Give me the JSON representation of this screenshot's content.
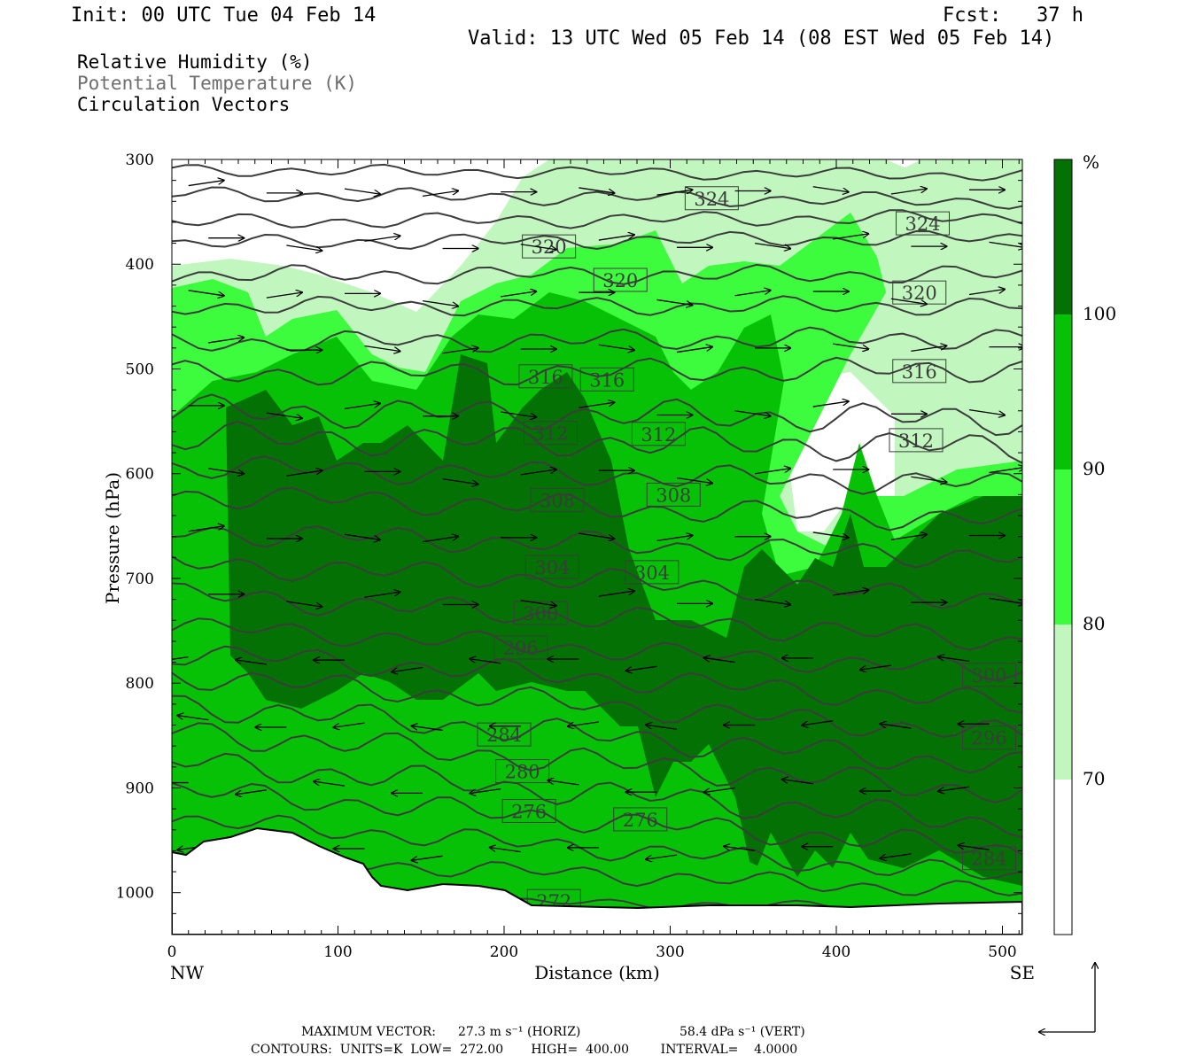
{
  "header": {
    "init": "Init: 00 UTC Tue 04 Feb 14",
    "fcst": "Fcst:   37 h",
    "valid": "Valid: 13 UTC Wed 05 Feb 14 (08 EST Wed 05 Feb 14)"
  },
  "legend": {
    "line1": "Relative Humidity (%)",
    "line2": "Potential Temperature (K)",
    "line3": "Circulation Vectors"
  },
  "footer": {
    "vector_label": "MAXIMUM VECTOR:",
    "horiz": "27.3 m s⁻¹ (HORIZ)",
    "vert": "58.4 dPa s⁻¹ (VERT)",
    "contours": "CONTOURS:  UNITS=K  LOW=  272.00       HIGH=  400.00        INTERVAL=    4.0000"
  },
  "colors": {
    "rh_lt70": "#ffffff",
    "rh_70_80": "#c1f7bf",
    "rh_80_90": "#3dfb3d",
    "rh_90_100": "#07c107",
    "rh_ge100": "#037103",
    "theta_line": "#3c3c3c"
  },
  "chart_data": {
    "type": "heatmap",
    "xlabel": "Distance (km)",
    "ylabel": "Pressure (hPa)",
    "xlim": [
      0,
      512
    ],
    "ylim": [
      1040,
      300
    ],
    "y_scale": "linear",
    "x_ticks": [
      "0",
      "100",
      "200",
      "300",
      "400",
      "500"
    ],
    "x_tick_values": [
      0,
      100,
      200,
      300,
      400,
      500
    ],
    "y_ticks": [
      "300",
      "400",
      "500",
      "600",
      "700",
      "800",
      "900",
      "1000"
    ],
    "y_tick_values": [
      300,
      400,
      500,
      600,
      700,
      800,
      900,
      1000
    ],
    "x_endpoints": {
      "left": "NW",
      "right": "SE"
    },
    "colorbar": {
      "unit": "%",
      "levels": [
        70,
        80,
        90,
        100
      ],
      "labels": [
        "70",
        "80",
        "90",
        "100"
      ]
    },
    "theta_contours": [
      {
        "label": "272",
        "x_km": 230,
        "p_hpa": 1008
      },
      {
        "label": "276",
        "x_km": 215,
        "p_hpa": 922
      },
      {
        "label": "276",
        "x_km": 282,
        "p_hpa": 930
      },
      {
        "label": "280",
        "x_km": 211,
        "p_hpa": 884
      },
      {
        "label": "284",
        "x_km": 200,
        "p_hpa": 849
      },
      {
        "label": "284",
        "x_km": 492,
        "p_hpa": 967
      },
      {
        "label": "296",
        "x_km": 210,
        "p_hpa": 766
      },
      {
        "label": "296",
        "x_km": 492,
        "p_hpa": 852
      },
      {
        "label": "300",
        "x_km": 222,
        "p_hpa": 733
      },
      {
        "label": "300",
        "x_km": 492,
        "p_hpa": 792
      },
      {
        "label": "304",
        "x_km": 229,
        "p_hpa": 689
      },
      {
        "label": "304",
        "x_km": 289,
        "p_hpa": 694
      },
      {
        "label": "308",
        "x_km": 232,
        "p_hpa": 625
      },
      {
        "label": "308",
        "x_km": 302,
        "p_hpa": 620
      },
      {
        "label": "312",
        "x_km": 228,
        "p_hpa": 561
      },
      {
        "label": "312",
        "x_km": 293,
        "p_hpa": 562
      },
      {
        "label": "312",
        "x_km": 448,
        "p_hpa": 568
      },
      {
        "label": "316",
        "x_km": 225,
        "p_hpa": 507
      },
      {
        "label": "316",
        "x_km": 262,
        "p_hpa": 510
      },
      {
        "label": "316",
        "x_km": 450,
        "p_hpa": 502
      },
      {
        "label": "320",
        "x_km": 227,
        "p_hpa": 383
      },
      {
        "label": "320",
        "x_km": 270,
        "p_hpa": 415
      },
      {
        "label": "320",
        "x_km": 450,
        "p_hpa": 427
      },
      {
        "label": "324",
        "x_km": 325,
        "p_hpa": 337
      },
      {
        "label": "324",
        "x_km": 452,
        "p_hpa": 361
      }
    ],
    "vectors_note": "circulation vectors; max horiz 27.3 m/s, max vert 58.4 dPa/s"
  }
}
